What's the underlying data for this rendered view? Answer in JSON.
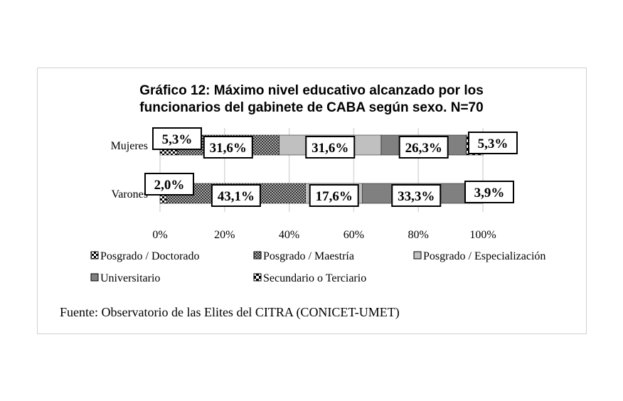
{
  "chart_data": {
    "type": "bar",
    "orientation": "horizontal",
    "stacked": "100%",
    "title": "Gráfico 12: Máximo nivel educativo alcanzado por los funcionarios del gabinete de CABA según sexo. N=70",
    "title_lines": [
      "Gráfico 12: Máximo nivel educativo alcanzado por los",
      "funcionarios del gabinete de CABA según sexo. N=70"
    ],
    "categories": [
      "Mujeres",
      "Varones"
    ],
    "xlim": [
      0,
      100
    ],
    "xticks": [
      "0%",
      "20%",
      "40%",
      "60%",
      "80%",
      "100%"
    ],
    "grid": true,
    "legend_placement": "bottom",
    "series": [
      {
        "name": "Posgrado / Doctorado",
        "values": [
          5.3,
          2.0
        ],
        "labels": [
          "5,3%",
          "2,0%"
        ],
        "fill": "checker-small"
      },
      {
        "name": "Posgrado / Maestría",
        "values": [
          31.6,
          43.1
        ],
        "labels": [
          "31,6%",
          "43,1%"
        ],
        "fill": "dotted-dark"
      },
      {
        "name": "Posgrado / Especialización",
        "values": [
          31.6,
          17.6
        ],
        "labels": [
          "31,6%",
          "17,6%"
        ],
        "fill": "#c0c0c0"
      },
      {
        "name": "Universitario",
        "values": [
          26.3,
          33.3
        ],
        "labels": [
          "26,3%",
          "33,3%"
        ],
        "fill": "#808080"
      },
      {
        "name": "Secundario o Terciario",
        "values": [
          5.3,
          3.9
        ],
        "labels": [
          "5,3%",
          "3,9%"
        ],
        "fill": "checker-large"
      }
    ],
    "source": "Fuente: Observatorio de las Elites del CITRA  (CONICET-UMET)"
  }
}
